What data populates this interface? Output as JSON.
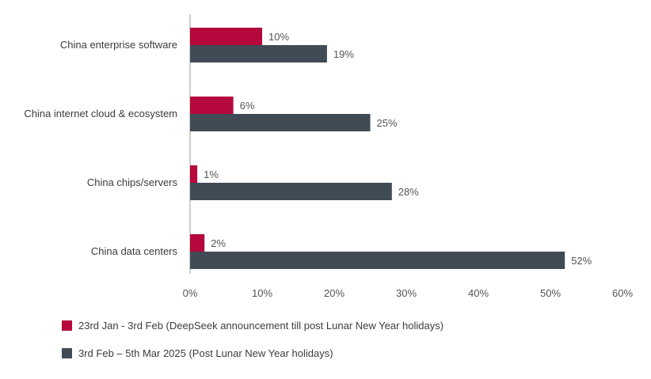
{
  "chart_data": {
    "type": "bar",
    "orientation": "horizontal",
    "categories": [
      "China enterprise software",
      "China internet cloud & ecosystem",
      "China chips/servers",
      "China data centers"
    ],
    "series": [
      {
        "name": "23rd Jan - 3rd Feb (DeepSeek announcement till post Lunar New Year holidays)",
        "values": [
          10,
          6,
          1,
          2
        ],
        "labels": [
          "10%",
          "6%",
          "1%",
          "2%"
        ],
        "color": "#b5083c"
      },
      {
        "name": "3rd Feb – 5th Mar 2025 (Post Lunar New Year holidays)",
        "values": [
          19,
          25,
          28,
          52
        ],
        "labels": [
          "19%",
          "25%",
          "28%",
          "52%"
        ],
        "color": "#414b55"
      }
    ],
    "xlim": [
      0,
      60
    ],
    "xticks": [
      0,
      10,
      20,
      30,
      40,
      50,
      60
    ],
    "xtick_labels": [
      "0%",
      "10%",
      "20%",
      "30%",
      "40%",
      "50%",
      "60%"
    ],
    "grid": false,
    "legend_position": "bottom-left"
  }
}
